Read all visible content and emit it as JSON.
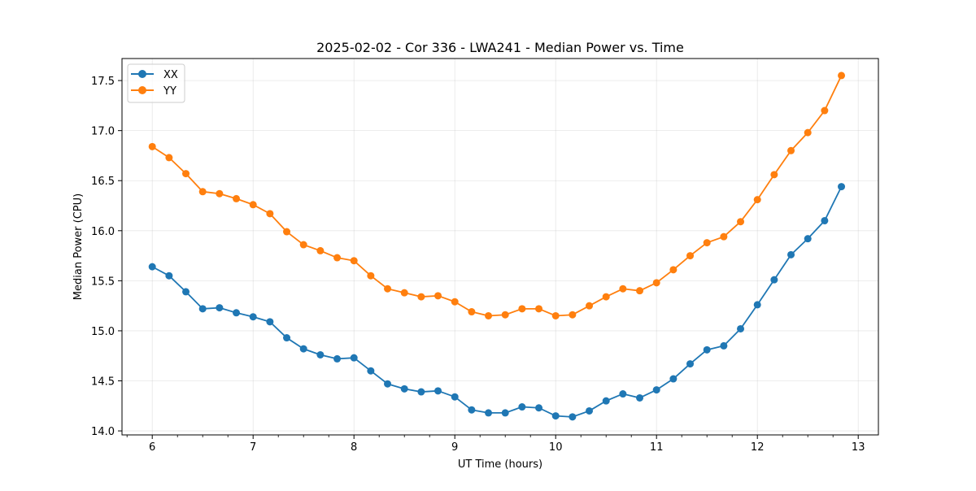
{
  "chart_data": {
    "type": "line",
    "title": "2025-02-02 - Cor 336 - LWA241 - Median Power vs. Time",
    "xlabel": "UT Time (hours)",
    "ylabel": "Median Power (CPU)",
    "xlim": [
      5.7,
      13.2
    ],
    "ylim": [
      13.96,
      17.72
    ],
    "x_major_ticks": [
      6,
      7,
      8,
      9,
      10,
      11,
      12,
      13
    ],
    "x_minor_step": 0.25,
    "y_major_ticks": [
      14.0,
      14.5,
      15.0,
      15.5,
      16.0,
      16.5,
      17.0,
      17.5
    ],
    "grid": true,
    "legend_location": "upper left",
    "x": [
      6.0,
      6.1667,
      6.3333,
      6.5,
      6.6667,
      6.8333,
      7.0,
      7.1667,
      7.3333,
      7.5,
      7.6667,
      7.8333,
      8.0,
      8.1667,
      8.3333,
      8.5,
      8.6667,
      8.8333,
      9.0,
      9.1667,
      9.3333,
      9.5,
      9.6667,
      9.8333,
      10.0,
      10.1667,
      10.3333,
      10.5,
      10.6667,
      10.8333,
      11.0,
      11.1667,
      11.3333,
      11.5,
      11.6667,
      11.8333,
      12.0,
      12.1667,
      12.3333,
      12.5,
      12.6667,
      12.8333
    ],
    "series": [
      {
        "name": "XX",
        "color": "#1f77b4",
        "values": [
          15.64,
          15.55,
          15.39,
          15.22,
          15.23,
          15.18,
          15.14,
          15.09,
          14.93,
          14.82,
          14.76,
          14.72,
          14.73,
          14.6,
          14.47,
          14.42,
          14.39,
          14.4,
          14.34,
          14.21,
          14.18,
          14.18,
          14.24,
          14.23,
          14.15,
          14.14,
          14.2,
          14.3,
          14.37,
          14.33,
          14.41,
          14.52,
          14.67,
          14.81,
          14.85,
          15.02,
          15.26,
          15.51,
          15.76,
          15.92,
          16.1,
          16.44
        ]
      },
      {
        "name": "YY",
        "color": "#ff7f0e",
        "values": [
          16.84,
          16.73,
          16.57,
          16.39,
          16.37,
          16.32,
          16.26,
          16.17,
          15.99,
          15.86,
          15.8,
          15.73,
          15.7,
          15.55,
          15.42,
          15.38,
          15.34,
          15.35,
          15.29,
          15.19,
          15.15,
          15.16,
          15.22,
          15.22,
          15.15,
          15.16,
          15.25,
          15.34,
          15.42,
          15.4,
          15.48,
          15.61,
          15.75,
          15.88,
          15.94,
          16.09,
          16.31,
          16.56,
          16.8,
          16.98,
          17.2,
          17.55
        ]
      }
    ]
  }
}
